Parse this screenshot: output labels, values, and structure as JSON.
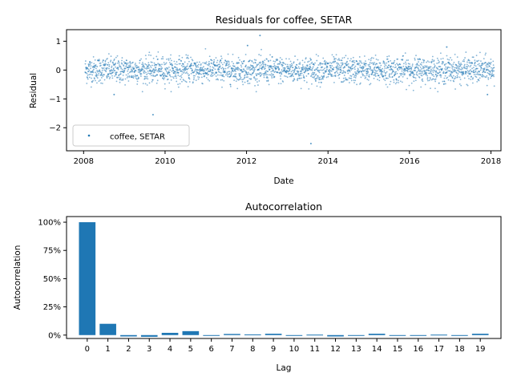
{
  "chart_data": [
    {
      "type": "scatter",
      "title": "Residuals for coffee, SETAR",
      "xlabel": "Date",
      "ylabel": "Residual",
      "xlim": [
        "2007-08-01",
        "2018-04-01"
      ],
      "ylim": [
        -2.8,
        1.4
      ],
      "x_tick_labels": [
        "2008",
        "2010",
        "2012",
        "2014",
        "2016",
        "2018"
      ],
      "y_tick_labels": [
        "1",
        "0",
        "−1",
        "−2"
      ],
      "y_ticks": [
        1,
        0,
        -1,
        -2
      ],
      "legend": {
        "position": "lower-left",
        "entries": [
          "coffee, SETAR"
        ]
      },
      "grid": false,
      "marker_color": "#1f77b4",
      "series": [
        {
          "name": "coffee, SETAR",
          "x_range": [
            "2008-01-15",
            "2018-01-31"
          ],
          "approx_count": 2500,
          "typical_spread": [
            -0.5,
            0.5
          ],
          "outliers": [
            {
              "x": "2009-09-15",
              "y": -1.55
            },
            {
              "x": "2012-05-01",
              "y": 1.2
            },
            {
              "x": "2013-08-01",
              "y": -2.55
            },
            {
              "x": "2012-01-10",
              "y": 0.85
            },
            {
              "x": "2016-12-01",
              "y": 0.8
            },
            {
              "x": "2008-10-01",
              "y": -0.85
            },
            {
              "x": "2017-12-01",
              "y": -0.85
            }
          ]
        }
      ]
    },
    {
      "type": "bar",
      "title": "Autocorrelation",
      "xlabel": "Lag",
      "ylabel": "Autocorrelation",
      "ylim": [
        -0.03,
        1.05
      ],
      "y_ticks": [
        0,
        0.25,
        0.5,
        0.75,
        1.0
      ],
      "y_tick_labels": [
        "0%",
        "25%",
        "50%",
        "75%",
        "100%"
      ],
      "categories": [
        "0",
        "1",
        "2",
        "3",
        "4",
        "5",
        "6",
        "7",
        "8",
        "9",
        "10",
        "11",
        "12",
        "13",
        "14",
        "15",
        "16",
        "17",
        "18",
        "19"
      ],
      "values": [
        1.0,
        0.1,
        -0.012,
        -0.015,
        0.02,
        0.035,
        0.0,
        0.01,
        0.006,
        0.012,
        -0.006,
        0.004,
        -0.012,
        0.0,
        0.012,
        0.0,
        -0.006,
        0.004,
        -0.006,
        0.012
      ],
      "bar_color": "#1f77b4"
    }
  ]
}
